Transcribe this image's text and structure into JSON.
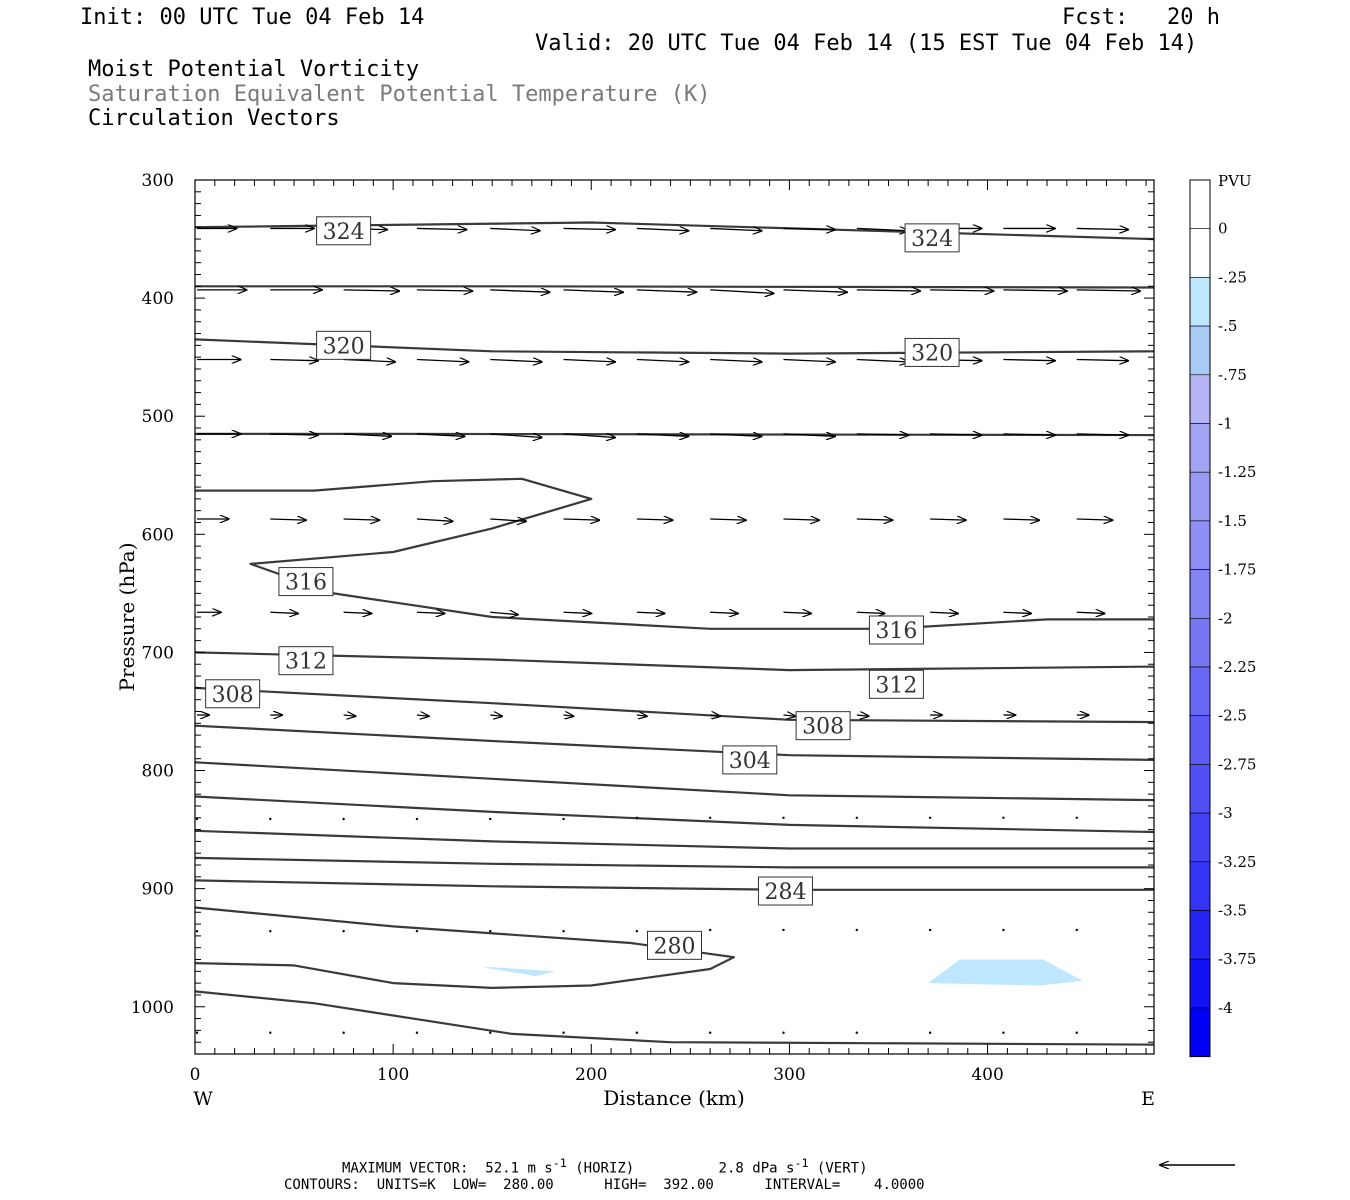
{
  "header": {
    "init": "Init: 00 UTC Tue 04 Feb 14",
    "fcst_label": "Fcst:",
    "fcst_value": "20 h",
    "valid": "Valid: 20 UTC Tue 04 Feb 14 (15 EST Tue 04 Feb 14)",
    "field1": "Moist Potential Vorticity",
    "field2": "Saturation Equivalent Potential Temperature (K)",
    "field3": "Circulation Vectors"
  },
  "footer": {
    "max_vector_label": "MAXIMUM VECTOR:",
    "horiz_value": "52.1",
    "horiz_unit": "m s",
    "horiz_tag": "(HORIZ)",
    "vert_value": "2.8",
    "vert_unit": "dPa s",
    "vert_tag": "(VERT)",
    "contours": "CONTOURS:  UNITS=K  LOW=  280.00      HIGH=  392.00      INTERVAL=    4.0000"
  },
  "chart_data": {
    "type": "cross-section",
    "xlabel": "Distance (km)",
    "ylabel": "Pressure (hPa)",
    "x_left_label": "W",
    "x_right_label": "E",
    "xlim": [
      0,
      484
    ],
    "ylim": [
      300,
      1040
    ],
    "x_ticks": [
      0,
      100,
      200,
      300,
      400
    ],
    "y_ticks": [
      300,
      400,
      500,
      600,
      700,
      800,
      900,
      1000
    ],
    "theta_es_contours": [
      {
        "x": [
          0,
          200,
          484
        ],
        "p": [
          340,
          336,
          350
        ]
      },
      {
        "x": [
          0,
          150,
          484
        ],
        "p": [
          390,
          390,
          391
        ]
      },
      {
        "x": [
          0,
          150,
          300,
          484
        ],
        "p": [
          435,
          445,
          447,
          445
        ]
      },
      {
        "x": [
          0,
          100,
          484
        ],
        "p": [
          515,
          515,
          516
        ]
      },
      {
        "x": [
          0,
          60,
          120,
          165,
          200,
          150,
          100,
          28,
          70,
          150,
          260,
          350,
          430,
          484
        ],
        "p": [
          563,
          563,
          555,
          553,
          570,
          595,
          615,
          625,
          650,
          670,
          680,
          680,
          672,
          672
        ]
      },
      {
        "x": [
          0,
          150,
          300,
          484
        ],
        "p": [
          700,
          706,
          715,
          712
        ]
      },
      {
        "x": [
          0,
          150,
          300,
          484
        ],
        "p": [
          730,
          743,
          757,
          759
        ]
      },
      {
        "x": [
          0,
          150,
          300,
          484
        ],
        "p": [
          762,
          775,
          787,
          791
        ]
      },
      {
        "x": [
          0,
          150,
          300,
          484
        ],
        "p": [
          793,
          807,
          821,
          825
        ]
      },
      {
        "x": [
          0,
          150,
          300,
          484
        ],
        "p": [
          822,
          835,
          846,
          852
        ]
      },
      {
        "x": [
          0,
          150,
          300,
          484
        ],
        "p": [
          851,
          860,
          866,
          866
        ]
      },
      {
        "x": [
          0,
          150,
          300,
          484
        ],
        "p": [
          874,
          879,
          882,
          882
        ]
      },
      {
        "x": [
          0,
          150,
          300,
          484
        ],
        "p": [
          893,
          898,
          901,
          901
        ]
      },
      {
        "x": [
          0,
          100,
          220,
          272,
          260,
          200,
          150,
          100,
          50,
          0
        ],
        "p": [
          916,
          932,
          946,
          958,
          968,
          982,
          984,
          980,
          965,
          963
        ]
      },
      {
        "x": [
          0,
          60,
          160,
          240,
          484
        ],
        "p": [
          987,
          997,
          1023,
          1030,
          1032
        ]
      }
    ],
    "contour_labels": [
      {
        "text": "324",
        "x": 75,
        "p": 343
      },
      {
        "text": "324",
        "x": 372,
        "p": 349
      },
      {
        "text": "320",
        "x": 75,
        "p": 440
      },
      {
        "text": "320",
        "x": 372,
        "p": 446
      },
      {
        "text": "316",
        "x": 56,
        "p": 640
      },
      {
        "text": "316",
        "x": 354,
        "p": 681
      },
      {
        "text": "312",
        "x": 56,
        "p": 707
      },
      {
        "text": "312",
        "x": 354,
        "p": 727
      },
      {
        "text": "308",
        "x": 19,
        "p": 735
      },
      {
        "text": "308",
        "x": 317,
        "p": 762
      },
      {
        "text": "304",
        "x": 280,
        "p": 791
      },
      {
        "text": "284",
        "x": 298,
        "p": 902
      },
      {
        "text": "280",
        "x": 242,
        "p": 948
      }
    ],
    "pv_shaded": [
      {
        "x": [
          145,
          182,
          172,
          150
        ],
        "p": [
          966,
          970,
          974,
          968
        ]
      },
      {
        "x": [
          370,
          386,
          428,
          448,
          426,
          370
        ],
        "p": [
          980,
          960,
          960,
          978,
          982,
          980
        ]
      }
    ],
    "vectors": [
      {
        "p": 341,
        "x": [
          0,
          37,
          74,
          111,
          148,
          185,
          222,
          259,
          296,
          333,
          370,
          407,
          444
        ],
        "dx": [
          20,
          22,
          22,
          25,
          25,
          26,
          26,
          26,
          26,
          26,
          26,
          26,
          26
        ],
        "dp": [
          0,
          0,
          1,
          1,
          2,
          1,
          2,
          2,
          1,
          2,
          0,
          0,
          1
        ]
      },
      {
        "p": 393,
        "x": [
          0,
          37,
          74,
          111,
          148,
          185,
          222,
          259,
          296,
          333,
          370,
          407,
          444
        ],
        "dx": [
          25,
          26,
          28,
          28,
          30,
          30,
          30,
          32,
          32,
          32,
          32,
          32,
          32
        ],
        "dp": [
          0,
          0,
          1,
          1,
          2,
          2,
          2,
          3,
          2,
          1,
          1,
          1,
          1
        ]
      },
      {
        "p": 452,
        "x": [
          0,
          37,
          74,
          111,
          148,
          185,
          222,
          259,
          296,
          333,
          370,
          407,
          444
        ],
        "dx": [
          22,
          24,
          26,
          26,
          26,
          26,
          26,
          26,
          26,
          26,
          26,
          26,
          26
        ],
        "dp": [
          0,
          1,
          2,
          2,
          2,
          2,
          2,
          2,
          2,
          2,
          1,
          1,
          1
        ]
      },
      {
        "p": 515,
        "x": [
          0,
          37,
          74,
          111,
          148,
          185,
          222,
          259,
          296,
          333,
          370,
          407,
          444
        ],
        "dx": [
          22,
          24,
          24,
          24,
          26,
          26,
          26,
          26,
          26,
          26,
          26,
          26,
          26
        ],
        "dp": [
          0,
          1,
          2,
          2,
          3,
          3,
          2,
          2,
          2,
          1,
          1,
          1,
          1
        ]
      },
      {
        "p": 587,
        "x": [
          0,
          37,
          74,
          111,
          148,
          185,
          222,
          259,
          296,
          333,
          370,
          407,
          444
        ],
        "dx": [
          16,
          18,
          18,
          18,
          18,
          18,
          18,
          18,
          18,
          18,
          18,
          18,
          18
        ],
        "dp": [
          0,
          1,
          1,
          2,
          2,
          1,
          1,
          1,
          1,
          1,
          1,
          1,
          1
        ]
      },
      {
        "p": 666,
        "x": [
          0,
          37,
          74,
          111,
          148,
          185,
          222,
          259,
          296,
          333,
          370,
          407,
          444
        ],
        "dx": [
          12,
          14,
          14,
          14,
          14,
          14,
          14,
          14,
          14,
          14,
          14,
          14,
          14
        ],
        "dp": [
          0,
          1,
          1,
          1,
          2,
          1,
          1,
          1,
          1,
          1,
          1,
          1,
          1
        ]
      },
      {
        "p": 753,
        "x": [
          0,
          37,
          74,
          111,
          148,
          185,
          222,
          259,
          296,
          333,
          370,
          407,
          444
        ],
        "dx": [
          6,
          6,
          6,
          6,
          6,
          5,
          5,
          5,
          6,
          6,
          6,
          6,
          6
        ],
        "dp": [
          0,
          0,
          1,
          1,
          1,
          1,
          1,
          1,
          1,
          1,
          0,
          0,
          0
        ]
      },
      {
        "p": 840,
        "x": [
          0,
          37,
          74,
          111,
          148,
          185,
          222,
          259,
          296,
          333,
          370,
          407,
          444
        ],
        "dx": [
          1,
          1,
          1,
          1,
          1,
          1,
          1,
          1,
          1,
          1,
          1,
          1,
          1
        ],
        "dp": [
          1,
          1,
          1,
          1,
          1,
          1,
          0,
          0,
          0,
          0,
          0,
          0,
          0
        ]
      },
      {
        "p": 935,
        "x": [
          0,
          37,
          74,
          111,
          148,
          185,
          222,
          259,
          296,
          333,
          370,
          407,
          444
        ],
        "dx": [
          1,
          1,
          1,
          1,
          1,
          1,
          1,
          1,
          1,
          1,
          1,
          1,
          1
        ],
        "dp": [
          1,
          1,
          1,
          1,
          1,
          1,
          1,
          0,
          0,
          0,
          0,
          0,
          0
        ]
      },
      {
        "p": 1022,
        "x": [
          0,
          37,
          74,
          111,
          148,
          185,
          222,
          259,
          296,
          333,
          370,
          407,
          444
        ],
        "dx": [
          1,
          1,
          1,
          1,
          1,
          1,
          1,
          1,
          1,
          1,
          1,
          1,
          1
        ],
        "dp": [
          0,
          0,
          0,
          0,
          0,
          0,
          0,
          0,
          0,
          0,
          0,
          0,
          0
        ]
      }
    ],
    "colorbar": {
      "title": "PVU",
      "labels": [
        "0",
        "-.25",
        "-.5",
        "-.75",
        "-1",
        "-1.25",
        "-1.5",
        "-1.75",
        "-2",
        "-2.25",
        "-2.5",
        "-2.75",
        "-3",
        "-3.25",
        "-3.5",
        "-3.75",
        "-4"
      ],
      "colors": [
        "#ffffff",
        "#ffffff",
        "#bfe6ff",
        "#a8ccf6",
        "#b4b4f6",
        "#a3a3f4",
        "#9a9af4",
        "#8e8ef4",
        "#8383f4",
        "#7777f4",
        "#6868f4",
        "#5c5cf4",
        "#5050f4",
        "#4242f4",
        "#3434f4",
        "#2626f4",
        "#1212f4",
        "#0000f4"
      ],
      "pv_fill_color": "#bfe6ff"
    },
    "reference_arrow": {
      "direction": "left"
    }
  }
}
